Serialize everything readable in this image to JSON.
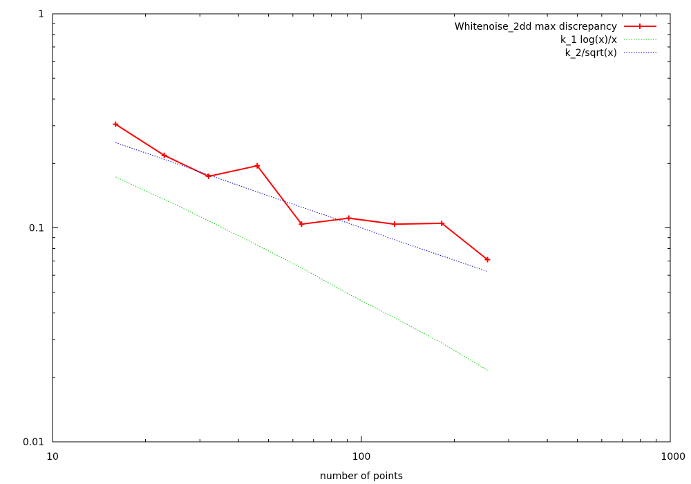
{
  "chart_data": {
    "type": "line",
    "title": "",
    "xlabel": "number of points",
    "ylabel": "",
    "x_scale": "log",
    "y_scale": "log",
    "xlim": [
      10,
      1000
    ],
    "ylim": [
      0.01,
      1
    ],
    "x_ticks": [
      {
        "value": 10,
        "label": "10"
      },
      {
        "value": 100,
        "label": "100"
      },
      {
        "value": 1000,
        "label": "1000"
      }
    ],
    "y_ticks": [
      {
        "value": 0.01,
        "label": "0.01"
      },
      {
        "value": 0.1,
        "label": "0.1"
      },
      {
        "value": 1,
        "label": "1"
      }
    ],
    "grid": false,
    "legend_position": "top-right",
    "series": [
      {
        "name": "Whitenoise_2dd max discrepancy",
        "color": "#ff0000",
        "style": "solid-with-plus-markers",
        "x": [
          16,
          23,
          32,
          46,
          64,
          91,
          128,
          182,
          256
        ],
        "y": [
          0.305,
          0.218,
          0.174,
          0.195,
          0.104,
          0.111,
          0.104,
          0.105,
          0.071
        ]
      },
      {
        "name": "k_1 log(x)/x",
        "color": "#00cc00",
        "style": "dotted",
        "x": [
          16,
          23,
          32,
          46,
          64,
          91,
          128,
          182,
          256
        ],
        "y": [
          0.173,
          0.136,
          0.108,
          0.083,
          0.065,
          0.049,
          0.038,
          0.029,
          0.0216
        ]
      },
      {
        "name": "k_2/sqrt(x)",
        "color": "#0000cc",
        "style": "dotted",
        "x": [
          16,
          23,
          32,
          46,
          64,
          91,
          128,
          182,
          256
        ],
        "y": [
          0.25,
          0.209,
          0.177,
          0.147,
          0.125,
          0.105,
          0.088,
          0.074,
          0.0625
        ]
      }
    ]
  }
}
